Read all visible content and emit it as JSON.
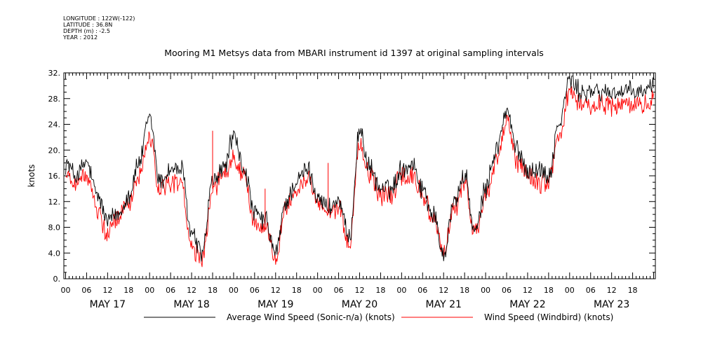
{
  "header": {
    "meta_lines": [
      "LONGITUDE : 122W(-122)",
      "LATITUDE : 36.8N",
      "DEPTH (m) : -2.5",
      "YEAR : 2012"
    ]
  },
  "chart_data": {
    "type": "line",
    "title": "Mooring M1 Metsys data from MBARI instrument id 1397 at original sampling intervals",
    "ylabel": "knots",
    "xlabel": "",
    "ylim": [
      0,
      32
    ],
    "y_ticks": [
      "0.",
      "4.0",
      "8.0",
      "12.",
      "16.",
      "20.",
      "24.",
      "28.",
      "32."
    ],
    "x_hour_ticks": [
      "00",
      "06",
      "12",
      "18"
    ],
    "x_days": [
      "MAY 17",
      "MAY 18",
      "MAY 19",
      "MAY 20",
      "MAY 21",
      "MAY 22",
      "MAY 23"
    ],
    "x_unit": "hours since MAY 17 00",
    "xlim": [
      -0.5,
      168.5
    ],
    "grid": false,
    "legend_position": "bottom",
    "series": [
      {
        "name": "Average Wind Speed (Sonic-n/a) (knots)",
        "color": "#000000",
        "x": [
          0,
          3,
          6,
          9,
          12,
          15,
          18,
          21,
          24,
          27,
          30,
          33,
          36,
          39,
          42,
          45,
          48,
          51,
          54,
          57,
          60,
          63,
          66,
          69,
          72,
          75,
          78,
          81,
          84,
          87,
          90,
          93,
          96,
          99,
          102,
          105,
          108,
          111,
          114,
          117,
          120,
          123,
          126,
          129,
          132,
          135,
          138,
          141,
          144,
          147,
          150,
          153,
          156,
          159,
          162,
          165,
          168
        ],
        "values": [
          18,
          16,
          18,
          13,
          9,
          10,
          13,
          18,
          25,
          15,
          17,
          17,
          7,
          4,
          15,
          17,
          22,
          17,
          10,
          9,
          4,
          12,
          15,
          17,
          13,
          11,
          12,
          6,
          23,
          17,
          14,
          14,
          17,
          18,
          14,
          10,
          4,
          12,
          16,
          7,
          14,
          20,
          26,
          20,
          17,
          17,
          16,
          24,
          31,
          29,
          29,
          29,
          29,
          29,
          29,
          29,
          30
        ]
      },
      {
        "name": "Wind Speed (Windbird) (knots)",
        "color": "#ff0000",
        "x": [
          0,
          3,
          6,
          9,
          12,
          15,
          18,
          21,
          24,
          27,
          30,
          33,
          36,
          39,
          42,
          45,
          48,
          51,
          54,
          57,
          60,
          63,
          66,
          69,
          72,
          75,
          78,
          81,
          84,
          87,
          90,
          93,
          96,
          99,
          102,
          105,
          108,
          111,
          114,
          117,
          120,
          123,
          126,
          129,
          132,
          135,
          138,
          141,
          144,
          147,
          150,
          153,
          156,
          159,
          162,
          165,
          168
        ],
        "values": [
          16,
          15,
          16,
          11,
          7,
          9,
          12,
          16,
          22,
          14,
          15,
          15,
          5,
          3,
          14,
          16,
          19,
          16,
          9,
          8,
          3,
          11,
          14,
          16,
          12,
          10,
          11,
          5,
          21,
          16,
          13,
          13,
          16,
          16,
          13,
          9,
          4,
          11,
          15,
          7,
          13,
          18,
          24,
          18,
          16,
          15,
          15,
          22,
          29,
          27,
          27,
          27,
          27,
          27,
          27,
          27,
          28
        ]
      }
    ]
  }
}
